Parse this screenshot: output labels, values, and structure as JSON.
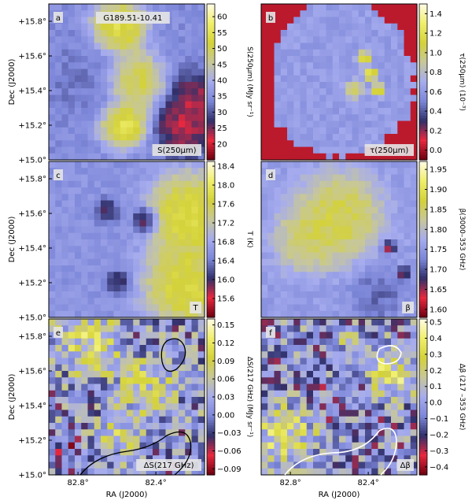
{
  "colormap": {
    "stops": [
      "#6b0010",
      "#e8283e",
      "#30306a",
      "#7c86d8",
      "#a6acee",
      "#c7c79a",
      "#d4d23a",
      "#f0ef6c",
      "#fffbe6"
    ],
    "contour_color_dark": "#000000",
    "contour_color_light": "#ffffff"
  },
  "chart_data": [
    {
      "id": "a",
      "type": "heatmap",
      "panel_letter": "a",
      "title": "G189.51-10.41",
      "map_label": "S(250μm)",
      "cbar_label": "S(250μm) (MJy sr⁻¹)",
      "cbar_range": [
        15,
        64
      ],
      "cbar_ticks": [
        "20",
        "25",
        "30",
        "35",
        "40",
        "45",
        "50",
        "55",
        "60"
      ],
      "cbar_tick_values": [
        20,
        25,
        30,
        35,
        40,
        45,
        50,
        55,
        60
      ],
      "ylabel": "Dec (J2000)",
      "yticks": [
        "+15.8°",
        "+15.6°",
        "+15.4°",
        "+15.2°",
        "+15.0°"
      ],
      "ytick_values": [
        15.8,
        15.6,
        15.4,
        15.2,
        15.0
      ],
      "xlabel": "",
      "xticks": [],
      "features": [
        {
          "kind": "blob",
          "x": 0.45,
          "y": 0.15,
          "r": 0.13,
          "v": 0.92
        },
        {
          "kind": "blob",
          "x": 0.55,
          "y": 0.5,
          "r": 0.14,
          "v": 0.85
        },
        {
          "kind": "blob",
          "x": 0.48,
          "y": 0.78,
          "r": 0.11,
          "v": 0.95
        },
        {
          "kind": "blob",
          "x": 0.88,
          "y": 0.78,
          "r": 0.14,
          "v": 0.08
        },
        {
          "kind": "blob",
          "x": 0.95,
          "y": 0.6,
          "r": 0.12,
          "v": 0.12
        },
        {
          "kind": "blob",
          "x": 0.25,
          "y": 0.5,
          "r": 0.18,
          "v": 0.35
        }
      ],
      "base_value": 0.4
    },
    {
      "id": "b",
      "type": "heatmap",
      "panel_letter": "b",
      "map_label": "τ(250μm)",
      "cbar_label": "τ(250μm) (10⁻³)",
      "cbar_range": [
        -0.1,
        1.5
      ],
      "cbar_ticks": [
        "0.0",
        "0.2",
        "0.4",
        "0.6",
        "0.8",
        "1.0",
        "1.2",
        "1.4"
      ],
      "cbar_tick_values": [
        0.0,
        0.2,
        0.4,
        0.6,
        0.8,
        1.0,
        1.2,
        1.4
      ],
      "ylabel": "",
      "yticks": [],
      "xlabel": "",
      "xticks": [],
      "features": [
        {
          "kind": "filament",
          "x": 0.66,
          "y": 0.35,
          "r": 0.03,
          "v": 0.95
        },
        {
          "kind": "filament",
          "x": 0.7,
          "y": 0.45,
          "r": 0.03,
          "v": 0.98
        },
        {
          "kind": "filament",
          "x": 0.6,
          "y": 0.55,
          "r": 0.04,
          "v": 0.8
        },
        {
          "kind": "filament",
          "x": 0.75,
          "y": 0.55,
          "r": 0.03,
          "v": 0.9
        }
      ],
      "base_value": 0.45,
      "masked_value": 0.08
    },
    {
      "id": "c",
      "type": "heatmap",
      "panel_letter": "c",
      "map_label": "T",
      "cbar_label": "T (K)",
      "cbar_range": [
        15.2,
        18.5
      ],
      "cbar_ticks": [
        "15.6",
        "16.0",
        "16.4",
        "16.8",
        "17.2",
        "17.6",
        "18.0",
        "18.4"
      ],
      "cbar_tick_values": [
        15.6,
        16.0,
        16.4,
        16.8,
        17.2,
        17.6,
        18.0,
        18.4
      ],
      "ylabel": "Dec (J2000)",
      "yticks": [
        "+15.8°",
        "+15.6°",
        "+15.4°",
        "+15.2°",
        "+15.0°"
      ],
      "ytick_values": [
        15.8,
        15.6,
        15.4,
        15.2,
        15.0
      ],
      "xlabel": "",
      "xticks": [],
      "features": [
        {
          "kind": "blob",
          "x": 0.62,
          "y": 0.38,
          "r": 0.06,
          "v": 0.08
        },
        {
          "kind": "blob",
          "x": 0.38,
          "y": 0.32,
          "r": 0.06,
          "v": 0.2
        },
        {
          "kind": "blob",
          "x": 0.45,
          "y": 0.78,
          "r": 0.06,
          "v": 0.18
        },
        {
          "kind": "blob",
          "x": 0.9,
          "y": 0.35,
          "r": 0.2,
          "v": 0.9
        },
        {
          "kind": "blob",
          "x": 0.88,
          "y": 0.8,
          "r": 0.2,
          "v": 0.88
        }
      ],
      "base_value": 0.42
    },
    {
      "id": "d",
      "type": "heatmap",
      "panel_letter": "d",
      "map_label": "β",
      "cbar_label": "β(3000–353 GHz)",
      "cbar_range": [
        1.58,
        1.97
      ],
      "cbar_ticks": [
        "1.60",
        "1.65",
        "1.70",
        "1.75",
        "1.80",
        "1.85",
        "1.90",
        "1.95"
      ],
      "cbar_tick_values": [
        1.6,
        1.65,
        1.7,
        1.75,
        1.8,
        1.85,
        1.9,
        1.95
      ],
      "ylabel": "",
      "yticks": [],
      "xlabel": "",
      "xticks": [],
      "features": [
        {
          "kind": "blob",
          "x": 0.5,
          "y": 0.35,
          "r": 0.2,
          "v": 0.82
        },
        {
          "kind": "blob",
          "x": 0.3,
          "y": 0.5,
          "r": 0.15,
          "v": 0.75
        },
        {
          "kind": "blob",
          "x": 0.82,
          "y": 0.55,
          "r": 0.03,
          "v": 0.02
        },
        {
          "kind": "blob",
          "x": 0.92,
          "y": 0.72,
          "r": 0.03,
          "v": 0.1
        },
        {
          "kind": "blob",
          "x": 0.75,
          "y": 0.85,
          "r": 0.12,
          "v": 0.3
        }
      ],
      "base_value": 0.45
    },
    {
      "id": "e",
      "type": "heatmap",
      "panel_letter": "e",
      "map_label": "ΔS(217 GHz)",
      "cbar_label": "ΔS(217 GHz) (MJy sr⁻¹)",
      "cbar_range": [
        -0.1,
        0.16
      ],
      "cbar_ticks": [
        "−0.09",
        "−0.06",
        "−0.03",
        "0.00",
        "0.03",
        "0.06",
        "0.09",
        "0.12",
        "0.15"
      ],
      "cbar_tick_values": [
        -0.09,
        -0.06,
        -0.03,
        0.0,
        0.03,
        0.06,
        0.09,
        0.12,
        0.15
      ],
      "ylabel": "Dec (J2000)",
      "yticks": [
        "+15.8°",
        "+15.6°",
        "+15.4°",
        "+15.2°",
        "+15.0°"
      ],
      "ytick_values": [
        15.8,
        15.6,
        15.4,
        15.2,
        15.0
      ],
      "xlabel": "RA (J2000)",
      "xticks": [
        "82.8°",
        "82.4°"
      ],
      "xtick_values": [
        82.8,
        82.4
      ],
      "features": [
        {
          "kind": "blob",
          "x": 0.25,
          "y": 0.15,
          "r": 0.15,
          "v": 0.78
        },
        {
          "kind": "blob",
          "x": 0.6,
          "y": 0.45,
          "r": 0.15,
          "v": 0.7
        },
        {
          "kind": "blob",
          "x": 0.45,
          "y": 0.75,
          "r": 0.1,
          "v": 0.72
        },
        {
          "kind": "blob",
          "x": 0.1,
          "y": 0.85,
          "r": 0.08,
          "v": 0.15
        }
      ],
      "base_value": 0.42,
      "patchy": true
    },
    {
      "id": "f",
      "type": "heatmap",
      "panel_letter": "f",
      "map_label": "Δβ",
      "cbar_label": "Δβ (217 –353 GHz)",
      "cbar_range": [
        -0.45,
        0.52
      ],
      "cbar_ticks": [
        "−0.4",
        "−0.3",
        "−0.2",
        "−0.1",
        "0.0",
        "0.1",
        "0.2",
        "0.3",
        "0.4",
        "0.5"
      ],
      "cbar_tick_values": [
        -0.4,
        -0.3,
        -0.2,
        -0.1,
        0.0,
        0.1,
        0.2,
        0.3,
        0.4,
        0.5
      ],
      "ylabel": "",
      "yticks": [],
      "xlabel": "RA (J2000)",
      "xticks": [
        "82.8°",
        "82.4°"
      ],
      "xtick_values": [
        82.8,
        82.4
      ],
      "features": [
        {
          "kind": "blob",
          "x": 0.15,
          "y": 0.75,
          "r": 0.15,
          "v": 0.8
        },
        {
          "kind": "blob",
          "x": 0.85,
          "y": 0.35,
          "r": 0.12,
          "v": 0.82
        },
        {
          "kind": "blob",
          "x": 0.6,
          "y": 0.2,
          "r": 0.1,
          "v": 0.6
        },
        {
          "kind": "blob",
          "x": 0.45,
          "y": 0.5,
          "r": 0.12,
          "v": 0.35
        }
      ],
      "base_value": 0.4,
      "patchy": true
    }
  ]
}
